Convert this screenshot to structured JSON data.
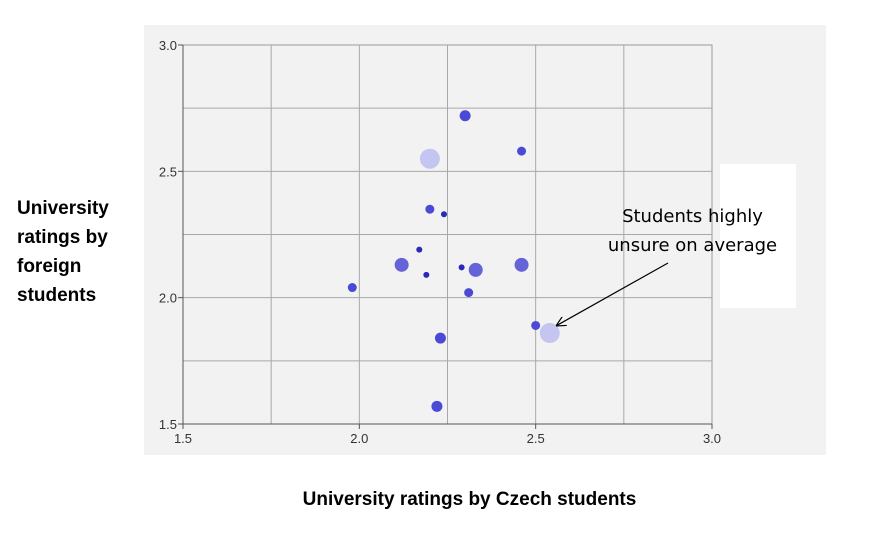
{
  "chart_data": {
    "type": "scatter",
    "title": "",
    "xlabel": "University ratings by Czech students",
    "ylabel": "University ratings by foreign students",
    "xlim": [
      1.5,
      3.0
    ],
    "ylim": [
      1.5,
      3.0
    ],
    "xticks": [
      "1.5",
      "2.0",
      "2.5",
      "3.0"
    ],
    "yticks": [
      "1.5",
      "2.0",
      "2.5",
      "3.0"
    ],
    "grid": true,
    "background_color": "#f2f2f2",
    "points": [
      {
        "x": 2.3,
        "y": 2.72,
        "size": "medium",
        "color": "#4a4ad6"
      },
      {
        "x": 2.46,
        "y": 2.58,
        "size": "small",
        "color": "#4a4ad6"
      },
      {
        "x": 2.2,
        "y": 2.55,
        "size": "xlarge",
        "color": "#c5c5f2"
      },
      {
        "x": 2.2,
        "y": 2.35,
        "size": "small",
        "color": "#4a4ad6"
      },
      {
        "x": 2.24,
        "y": 2.33,
        "size": "tiny",
        "color": "#2a2ab8"
      },
      {
        "x": 2.17,
        "y": 2.19,
        "size": "tiny",
        "color": "#2a2ab8"
      },
      {
        "x": 2.12,
        "y": 2.13,
        "size": "large",
        "color": "#6464d8"
      },
      {
        "x": 2.29,
        "y": 2.12,
        "size": "tiny",
        "color": "#2a2ab8"
      },
      {
        "x": 2.33,
        "y": 2.11,
        "size": "large",
        "color": "#6464d8"
      },
      {
        "x": 2.46,
        "y": 2.13,
        "size": "large",
        "color": "#6464d8"
      },
      {
        "x": 2.19,
        "y": 2.09,
        "size": "tiny",
        "color": "#2a2ab8"
      },
      {
        "x": 1.98,
        "y": 2.04,
        "size": "small",
        "color": "#4a4ad6"
      },
      {
        "x": 2.31,
        "y": 2.02,
        "size": "small",
        "color": "#4a4ad6"
      },
      {
        "x": 2.5,
        "y": 1.89,
        "size": "small",
        "color": "#4a4ad6"
      },
      {
        "x": 2.54,
        "y": 1.86,
        "size": "xlarge",
        "color": "#c5c5f2"
      },
      {
        "x": 2.23,
        "y": 1.84,
        "size": "medium",
        "color": "#4a4ad6"
      },
      {
        "x": 2.22,
        "y": 1.57,
        "size": "medium",
        "color": "#4a4ad6"
      }
    ],
    "annotation": {
      "text": "Students highly\nunsure on average",
      "target_x": 2.56,
      "target_y": 1.89,
      "arrow": true
    }
  },
  "labels": {
    "ylabel_display": "University\nratings by\nforeign\nstudents",
    "xlabel_display": "University ratings by Czech students"
  }
}
